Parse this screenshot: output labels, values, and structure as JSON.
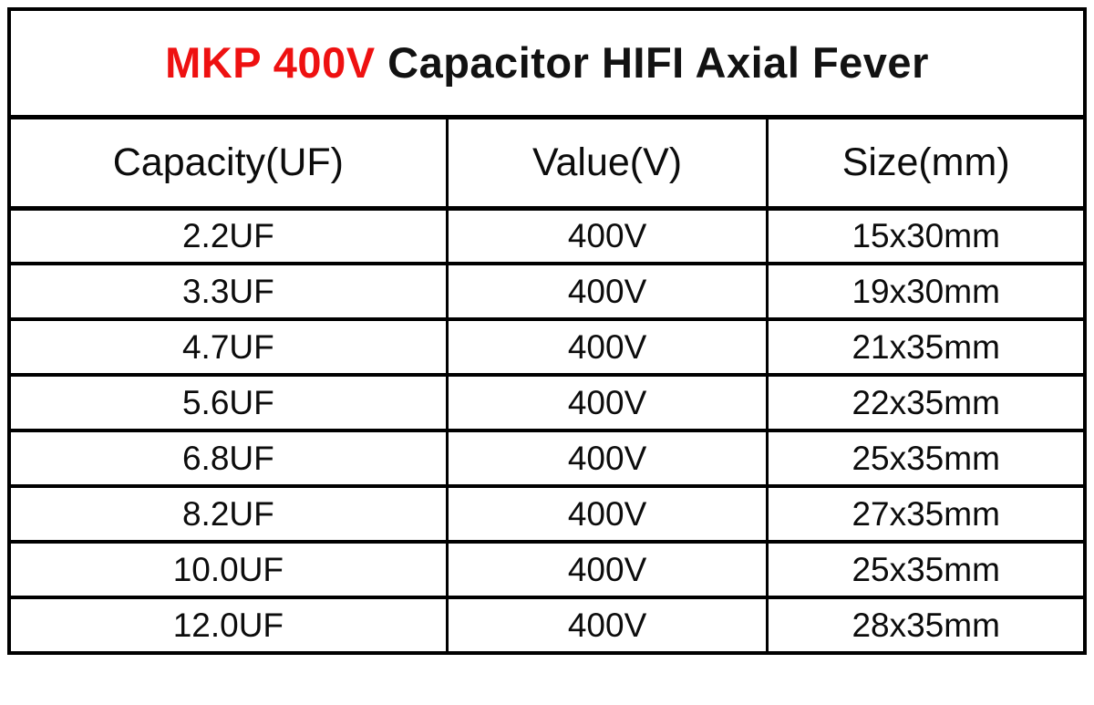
{
  "title": {
    "highlight": "MKP 400V",
    "rest": "Capacitor HIFI Axial Fever",
    "highlight_color": "#ee1111"
  },
  "table": {
    "headers": [
      "Capacity(UF)",
      "Value(V)",
      "Size(mm)"
    ],
    "rows": [
      [
        "2.2UF",
        "400V",
        "15x30mm"
      ],
      [
        "3.3UF",
        "400V",
        "19x30mm"
      ],
      [
        "4.7UF",
        "400V",
        "21x35mm"
      ],
      [
        "5.6UF",
        "400V",
        "22x35mm"
      ],
      [
        "6.8UF",
        "400V",
        "25x35mm"
      ],
      [
        "8.2UF",
        "400V",
        "27x35mm"
      ],
      [
        "10.0UF",
        "400V",
        "25x35mm"
      ],
      [
        "12.0UF",
        "400V",
        "28x35mm"
      ]
    ]
  },
  "colors": {
    "background": "#ffffff",
    "border": "#000000",
    "text": "#0c0c0c",
    "title_accent": "#ee1111"
  }
}
